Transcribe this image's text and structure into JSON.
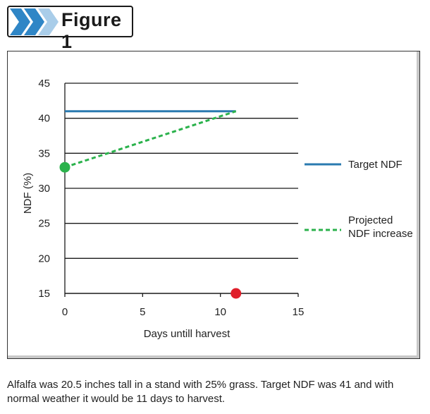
{
  "figure": {
    "label": "Figure 1",
    "accent_color": "#2f86c6",
    "light_color": "#a9cde9"
  },
  "chart_data": {
    "type": "line",
    "xlabel": "Days untill harvest",
    "ylabel": "NDF (%)",
    "xlim": [
      0,
      15
    ],
    "ylim": [
      15,
      45
    ],
    "xticks": [
      "0",
      "5",
      "10",
      "15"
    ],
    "yticks": [
      "15",
      "20",
      "25",
      "30",
      "35",
      "40",
      "45"
    ],
    "grid": "horizontal",
    "legend_position": "right",
    "series": [
      {
        "name": "Target NDF",
        "color": "#2a7ab0",
        "style": "solid",
        "points": [
          [
            0,
            41
          ],
          [
            11,
            41
          ]
        ]
      },
      {
        "name": "Projected NDF increase",
        "color": "#2bb24c",
        "style": "dashed",
        "points": [
          [
            0,
            33
          ],
          [
            11,
            41
          ]
        ]
      }
    ],
    "markers": [
      {
        "x": 0,
        "y": 33,
        "color": "#2bb24c"
      },
      {
        "x": 11,
        "y": 15,
        "color": "#e01e2a"
      }
    ],
    "legend": [
      {
        "lines": [
          "Target NDF"
        ],
        "color": "#2a7ab0",
        "style": "solid"
      },
      {
        "lines": [
          "Projected",
          "NDF increase"
        ],
        "color": "#2bb24c",
        "style": "dashed"
      }
    ]
  },
  "caption": {
    "text": "Alfalfa was 20.5 inches tall in a stand with 25% grass. Target NDF was 41 and with normal weather it would be 11 days to harvest."
  }
}
